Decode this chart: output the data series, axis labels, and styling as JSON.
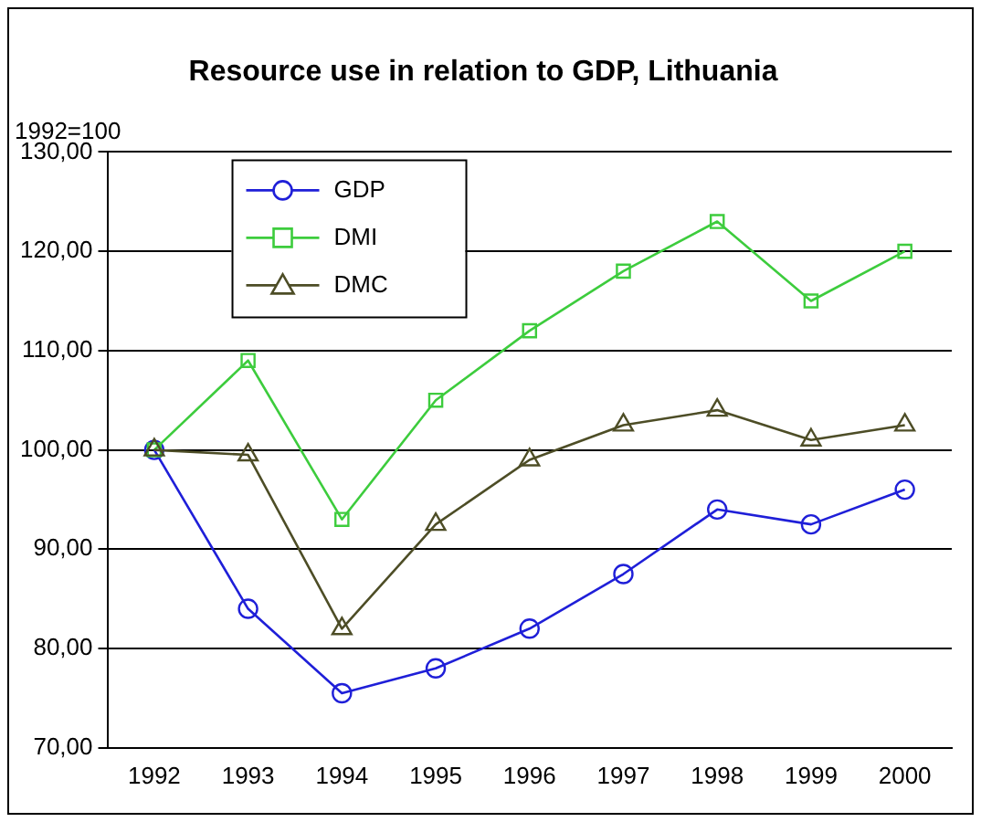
{
  "chart_data": {
    "type": "line",
    "title": "Resource use in relation to GDP, Lithuania",
    "ylabel": "1992=100",
    "categories": [
      "1992",
      "1993",
      "1994",
      "1995",
      "1996",
      "1997",
      "1998",
      "1999",
      "2000"
    ],
    "series": [
      {
        "name": "GDP",
        "color": "#1f1fd8",
        "marker": "circle",
        "values": [
          100,
          84,
          75.5,
          78,
          82,
          87.5,
          94,
          92.5,
          96
        ]
      },
      {
        "name": "DMI",
        "color": "#3dcc3d",
        "marker": "square",
        "values": [
          100,
          109,
          93,
          105,
          112,
          118,
          123,
          115,
          120
        ]
      },
      {
        "name": "DMC",
        "color": "#4d4d26",
        "marker": "triangle",
        "values": [
          100,
          99.5,
          82,
          92.5,
          99,
          102.5,
          104,
          101,
          102.5
        ]
      }
    ],
    "ylim": [
      70,
      130
    ],
    "yticks": [
      {
        "value": 70,
        "label": "70,00"
      },
      {
        "value": 80,
        "label": "80,00"
      },
      {
        "value": 90,
        "label": "90,00"
      },
      {
        "value": 100,
        "label": "100,00"
      },
      {
        "value": 110,
        "label": "110,00"
      },
      {
        "value": 120,
        "label": "120,00"
      },
      {
        "value": 130,
        "label": "130,00"
      }
    ],
    "grid": "y",
    "legend": "top left",
    "line_style": "solid"
  }
}
